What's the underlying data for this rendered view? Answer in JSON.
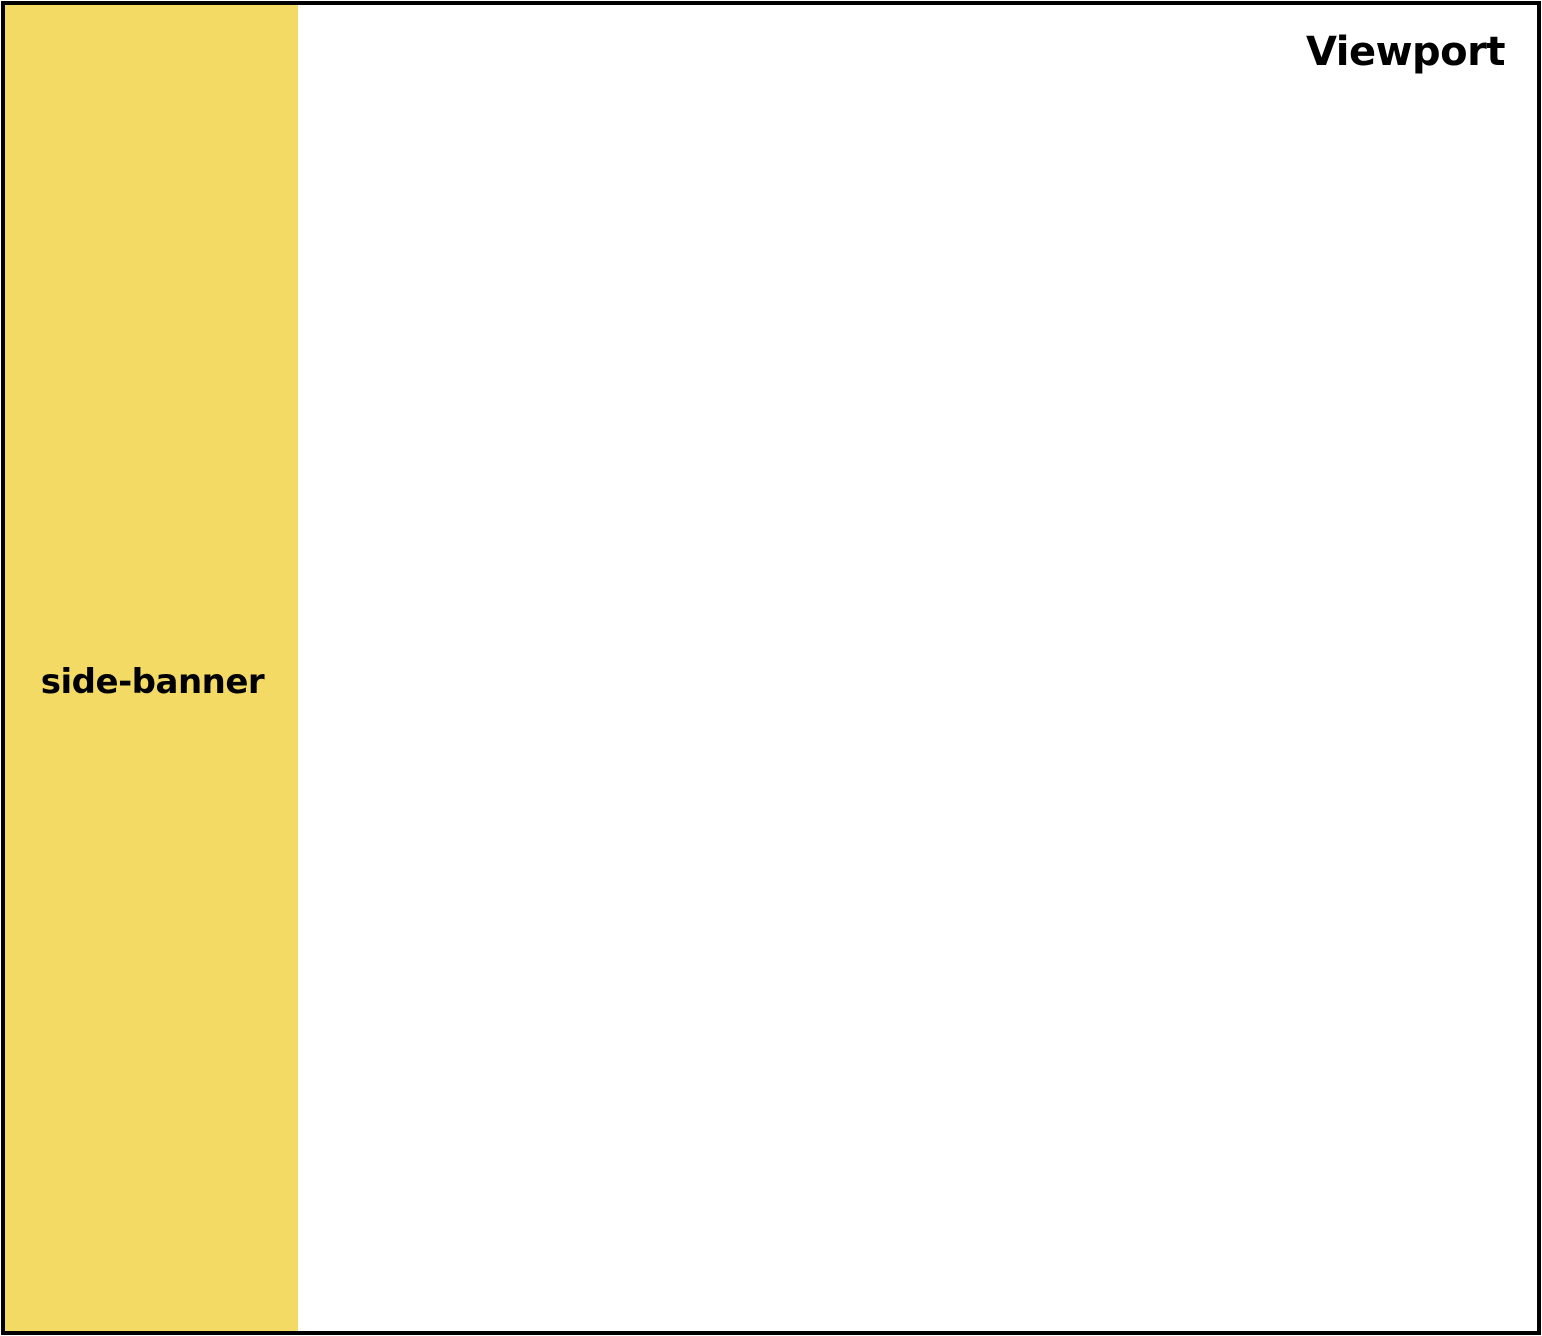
{
  "viewport": {
    "label": "Viewport",
    "border_color": "#000000",
    "background_color": "#ffffff"
  },
  "side_banner": {
    "label": "side-banner",
    "background_color": "#f2da64"
  }
}
